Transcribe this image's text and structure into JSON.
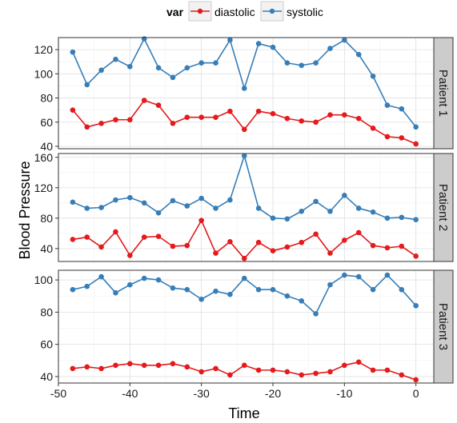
{
  "chart_data": {
    "type": "line",
    "facet_type": "rows",
    "xlabel": "Time",
    "ylabel": "Blood Pressure",
    "legend_title": "var",
    "legend_position": "top",
    "grid": true,
    "x": [
      -48,
      -46,
      -44,
      -42,
      -40,
      -38,
      -36,
      -34,
      -32,
      -30,
      -28,
      -26,
      -24,
      -22,
      -20,
      -18,
      -16,
      -14,
      -12,
      -10,
      -8,
      -6,
      -4,
      -2,
      0
    ],
    "xlim": [
      -50,
      2.5
    ],
    "xticks": [
      "-50",
      "-40",
      "-30",
      "-20",
      "-10",
      "0"
    ],
    "xtick_values": [
      -50,
      -40,
      -30,
      -20,
      -10,
      0
    ],
    "series_meta": [
      {
        "name": "diastolic",
        "color": "#E41A1C"
      },
      {
        "name": "systolic",
        "color": "#377EB8"
      }
    ],
    "panels": [
      {
        "strip": "Patient 1",
        "ylim": [
          38,
          130
        ],
        "yticks": [
          "40",
          "60",
          "80",
          "100",
          "120"
        ],
        "ytick_values": [
          40,
          60,
          80,
          100,
          120
        ],
        "series": [
          {
            "name": "diastolic",
            "values": [
              70,
              56,
              59,
              62,
              62,
              78,
              74,
              59,
              64,
              64,
              64,
              69,
              54,
              69,
              67,
              63,
              61,
              60,
              66,
              66,
              63,
              55,
              48,
              47,
              42
            ]
          },
          {
            "name": "systolic",
            "values": [
              118,
              91,
              103,
              112,
              106,
              129,
              105,
              97,
              105,
              109,
              109,
              128,
              88,
              125,
              122,
              109,
              107,
              109,
              121,
              128,
              116,
              98,
              74,
              71,
              56
            ]
          }
        ]
      },
      {
        "strip": "Patient 2",
        "ylim": [
          23,
          165
        ],
        "yticks": [
          "40",
          "80",
          "120",
          "160"
        ],
        "ytick_values": [
          40,
          80,
          120,
          160
        ],
        "series": [
          {
            "name": "diastolic",
            "values": [
              52,
              55,
              42,
              62,
              31,
              55,
              56,
              43,
              44,
              77,
              34,
              49,
              27,
              48,
              37,
              42,
              48,
              59,
              34,
              51,
              61,
              44,
              41,
              43,
              30
            ]
          },
          {
            "name": "systolic",
            "values": [
              101,
              93,
              94,
              104,
              107,
              100,
              87,
              103,
              96,
              106,
              93,
              104,
              162,
              93,
              80,
              79,
              89,
              102,
              89,
              110,
              93,
              88,
              80,
              81,
              78
            ]
          }
        ]
      },
      {
        "strip": "Patient 3",
        "ylim": [
          36,
          106
        ],
        "yticks": [
          "40",
          "60",
          "80",
          "100"
        ],
        "ytick_values": [
          40,
          60,
          80,
          100
        ],
        "series": [
          {
            "name": "diastolic",
            "values": [
              45,
              46,
              45,
              47,
              48,
              47,
              47,
              48,
              46,
              43,
              45,
              41,
              47,
              44,
              44,
              43,
              41,
              42,
              43,
              47,
              49,
              44,
              44,
              41,
              38
            ]
          },
          {
            "name": "systolic",
            "values": [
              94,
              96,
              102,
              92,
              97,
              101,
              100,
              95,
              94,
              88,
              93,
              91,
              101,
              94,
              94,
              90,
              87,
              79,
              97,
              103,
              102,
              94,
              103,
              94,
              84
            ]
          }
        ]
      }
    ]
  }
}
